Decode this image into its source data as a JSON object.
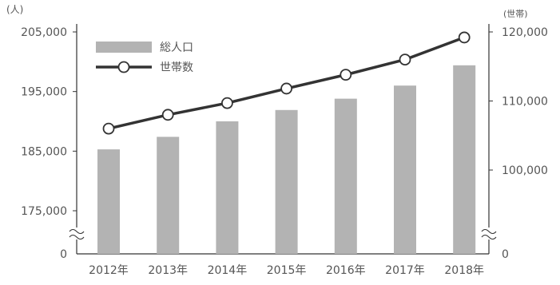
{
  "chart_data": {
    "type": "bar+line",
    "categories": [
      "2012年",
      "2013年",
      "2014年",
      "2015年",
      "2016年",
      "2017年",
      "2018年"
    ],
    "series": [
      {
        "name": "総人口",
        "type": "bar",
        "axis": "left",
        "values": [
          185300,
          187400,
          190000,
          191900,
          193800,
          196000,
          199400
        ]
      },
      {
        "name": "世帯数",
        "type": "line",
        "axis": "right",
        "values": [
          106000,
          108000,
          109700,
          111800,
          113800,
          116000,
          119200
        ]
      }
    ],
    "left_axis": {
      "unit": "(人)",
      "ticks": [
        {
          "value": 175000,
          "label": "175,000"
        },
        {
          "value": 185000,
          "label": "185,000"
        },
        {
          "value": 195000,
          "label": "195,000"
        },
        {
          "value": 205000,
          "label": "205,000"
        }
      ],
      "zero_label": "0",
      "axis_break": true
    },
    "right_axis": {
      "unit": "(世帯)",
      "ticks": [
        {
          "value": 100000,
          "label": "100,000"
        },
        {
          "value": 110000,
          "label": "110,000"
        },
        {
          "value": 120000,
          "label": "120,000"
        }
      ],
      "zero_label": "0",
      "axis_break": true
    },
    "legend_position": "top-left",
    "grid": false,
    "colors": {
      "bar": "#b3b3b3",
      "line": "#333333",
      "marker_fill": "#ffffff",
      "axis": "#333333",
      "text": "#555555"
    }
  }
}
